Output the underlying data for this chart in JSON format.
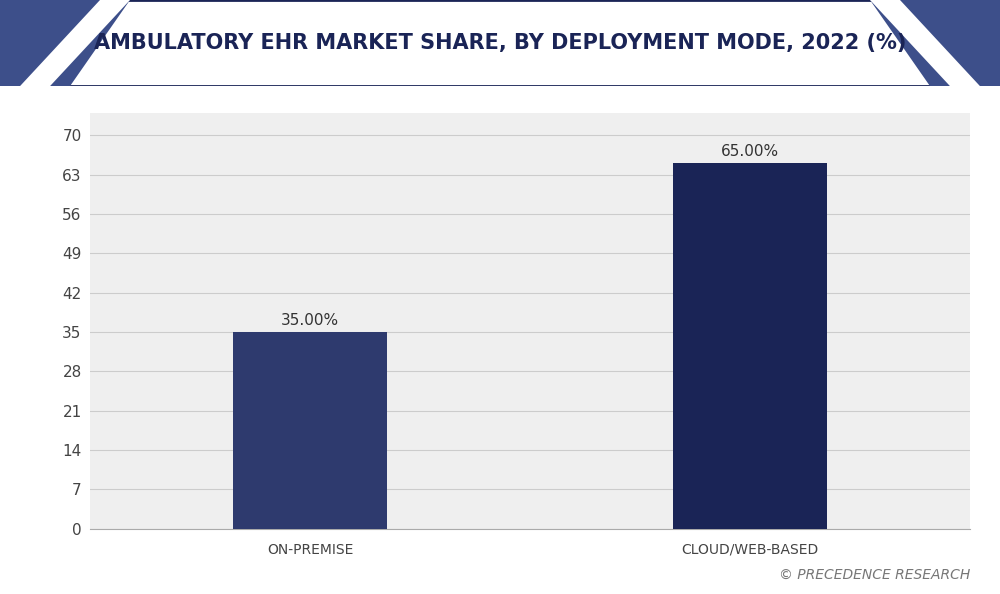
{
  "title": "AMBULATORY EHR MARKET SHARE, BY DEPLOYMENT MODE, 2022 (%)",
  "categories": [
    "ON-PREMISE",
    "CLOUD/WEB-BASED"
  ],
  "values": [
    35.0,
    65.0
  ],
  "bar_colors": [
    "#2e3a6e",
    "#1a2456"
  ],
  "bar_labels": [
    "35.00%",
    "65.00%"
  ],
  "yticks": [
    0,
    7,
    14,
    21,
    28,
    35,
    42,
    49,
    56,
    63,
    70
  ],
  "ylim": [
    0,
    74
  ],
  "background_color": "#ffffff",
  "plot_bg_color": "#efefef",
  "title_color": "#1a2456",
  "title_fontsize": 15,
  "tick_label_color": "#444444",
  "tick_fontsize": 11,
  "bar_label_fontsize": 11,
  "bar_label_color": "#333333",
  "xlabel_color": "#444444",
  "xlabel_fontsize": 10,
  "watermark": "© PRECEDENCE RESEARCH",
  "watermark_color": "#777777",
  "watermark_fontsize": 10,
  "header_bg_color": "#ffffff",
  "header_border_color": "#1a2456",
  "header_triangle_dark": "#1a2456",
  "header_triangle_mid": "#3d4f8a",
  "grid_color": "#cccccc",
  "figsize": [
    10.0,
    5.94
  ],
  "dpi": 100
}
